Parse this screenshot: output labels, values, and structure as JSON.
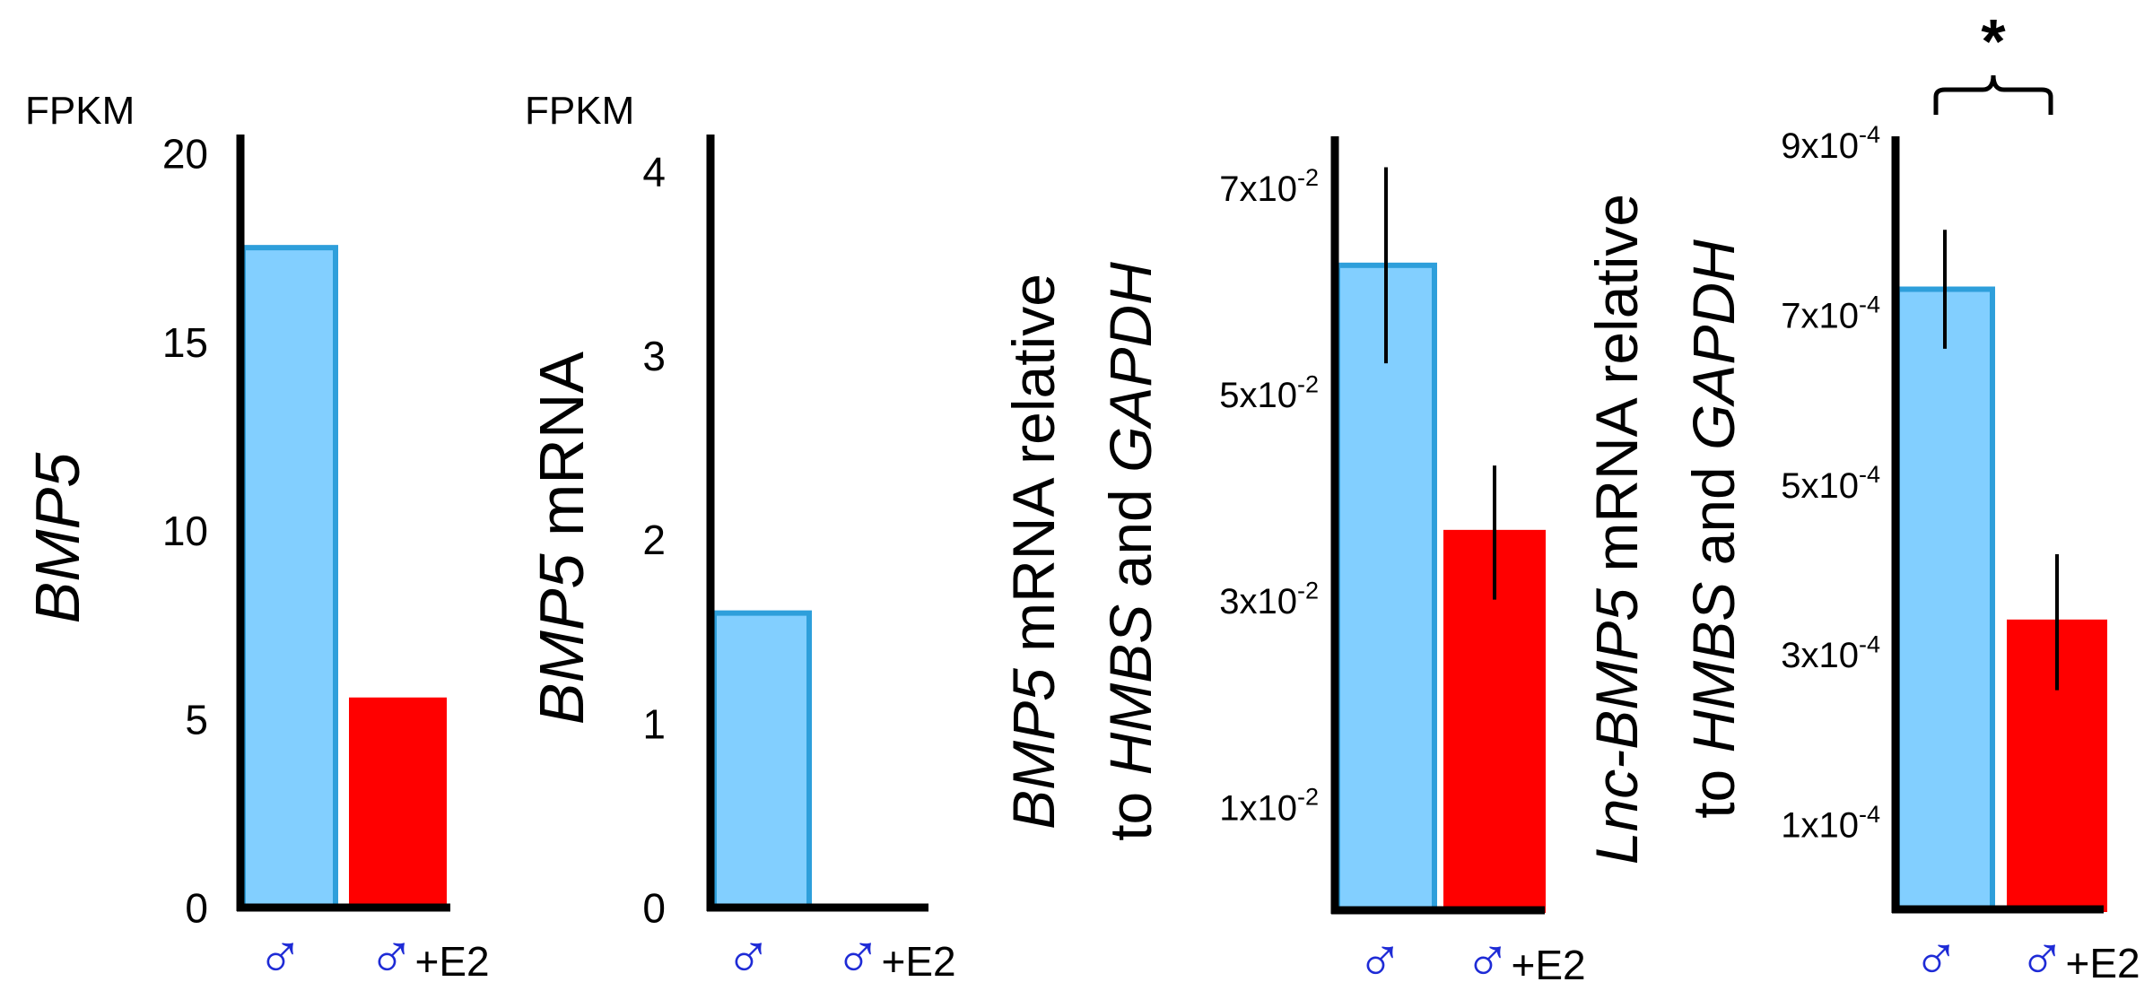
{
  "chart_data": [
    {
      "type": "bar",
      "categories": [
        "♂",
        "♂+E2"
      ],
      "values": [
        17.5,
        5.5
      ],
      "colors": [
        "#82CFFF",
        "#FF0000"
      ],
      "bar_outline_colors": [
        "#2E9FDB",
        "#FF0000"
      ],
      "unit_label": "FPKM",
      "ylabel": "BMP5",
      "ylim": [
        0,
        20.5
      ],
      "yticks": [
        0,
        5,
        10,
        15,
        20
      ],
      "ytick_labels": [
        "0",
        "5",
        "10",
        "15",
        "20"
      ]
    },
    {
      "type": "bar",
      "categories": [
        "♂",
        "♂+E2"
      ],
      "values": [
        1.6,
        0
      ],
      "colors": [
        "#82CFFF",
        "#FF0000"
      ],
      "bar_outline_colors": [
        "#2E9FDB",
        "#FF0000"
      ],
      "unit_label": "FPKM",
      "ylabel": "BMP5 mRNA",
      "ylim": [
        0,
        4.2
      ],
      "yticks": [
        0,
        1,
        2,
        3,
        4
      ],
      "ytick_labels": [
        "0",
        "1",
        "2",
        "3",
        "4"
      ]
    },
    {
      "type": "bar",
      "categories": [
        "♂",
        "♂+E2"
      ],
      "values": [
        0.0625,
        0.0366
      ],
      "errors": [
        0.0095,
        0.0065
      ],
      "colors": [
        "#82CFFF",
        "#FF0000"
      ],
      "bar_outline_colors": [
        "#2E9FDB",
        "#FF0000"
      ],
      "ylabel_lines": [
        "BMP5 mRNA relative",
        "to HMBS and GAPDH"
      ],
      "ylim": [
        0,
        0.075
      ],
      "yticks": [
        0.01,
        0.03,
        0.05,
        0.07
      ],
      "ytick_labels": [
        {
          "base": "1x10",
          "exp": "-2"
        },
        {
          "base": "3x10",
          "exp": "-2"
        },
        {
          "base": "5x10",
          "exp": "-2"
        },
        {
          "base": "7x10",
          "exp": "-2"
        }
      ]
    },
    {
      "type": "bar",
      "categories": [
        "♂",
        "♂+E2"
      ],
      "values": [
        0.00073,
        0.000338
      ],
      "errors": [
        7e-05,
        8e-05
      ],
      "colors": [
        "#82CFFF",
        "#FF0000"
      ],
      "bar_outline_colors": [
        "#2E9FDB",
        "#FF0000"
      ],
      "ylabel_lines": [
        "Lnc-BMP5 mRNA relative",
        "to HMBS and GAPDH"
      ],
      "ylim": [
        0,
        0.00091
      ],
      "yticks": [
        0.0001,
        0.0003,
        0.0005,
        0.0007,
        0.0009
      ],
      "ytick_labels": [
        {
          "base": "1x10",
          "exp": "-4"
        },
        {
          "base": "3x10",
          "exp": "-4"
        },
        {
          "base": "5x10",
          "exp": "-4"
        },
        {
          "base": "7x10",
          "exp": "-4"
        },
        {
          "base": "9x10",
          "exp": "-4"
        }
      ],
      "significance": "*"
    }
  ]
}
